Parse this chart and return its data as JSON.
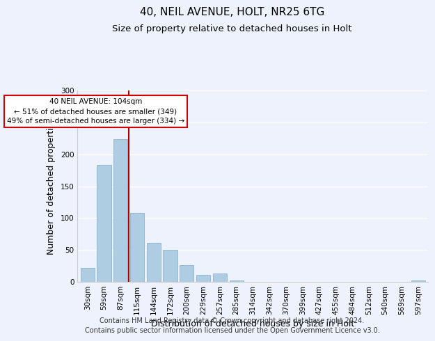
{
  "title": "40, NEIL AVENUE, HOLT, NR25 6TG",
  "subtitle": "Size of property relative to detached houses in Holt",
  "xlabel": "Distribution of detached houses by size in Holt",
  "ylabel": "Number of detached properties",
  "footer_line1": "Contains HM Land Registry data © Crown copyright and database right 2024.",
  "footer_line2": "Contains public sector information licensed under the Open Government Licence v3.0.",
  "bin_labels": [
    "30sqm",
    "59sqm",
    "87sqm",
    "115sqm",
    "144sqm",
    "172sqm",
    "200sqm",
    "229sqm",
    "257sqm",
    "285sqm",
    "314sqm",
    "342sqm",
    "370sqm",
    "399sqm",
    "427sqm",
    "455sqm",
    "484sqm",
    "512sqm",
    "540sqm",
    "569sqm",
    "597sqm"
  ],
  "bar_values": [
    22,
    183,
    224,
    108,
    61,
    50,
    26,
    11,
    13,
    2,
    0,
    0,
    0,
    0,
    0,
    0,
    0,
    0,
    0,
    0,
    2
  ],
  "bar_color": "#aecde3",
  "bar_edge_color": "#8ab4d0",
  "vline_color": "#aa0000",
  "annotation_title": "40 NEIL AVENUE: 104sqm",
  "annotation_line1": "← 51% of detached houses are smaller (349)",
  "annotation_line2": "49% of semi-detached houses are larger (334) →",
  "annotation_box_color": "#ffffff",
  "annotation_border_color": "#cc0000",
  "ylim": [
    0,
    300
  ],
  "yticks": [
    0,
    50,
    100,
    150,
    200,
    250,
    300
  ],
  "background_color": "#eef2fc",
  "grid_color": "#ffffff",
  "title_fontsize": 11,
  "subtitle_fontsize": 9.5,
  "axis_label_fontsize": 9,
  "tick_fontsize": 7.5,
  "footer_fontsize": 7
}
